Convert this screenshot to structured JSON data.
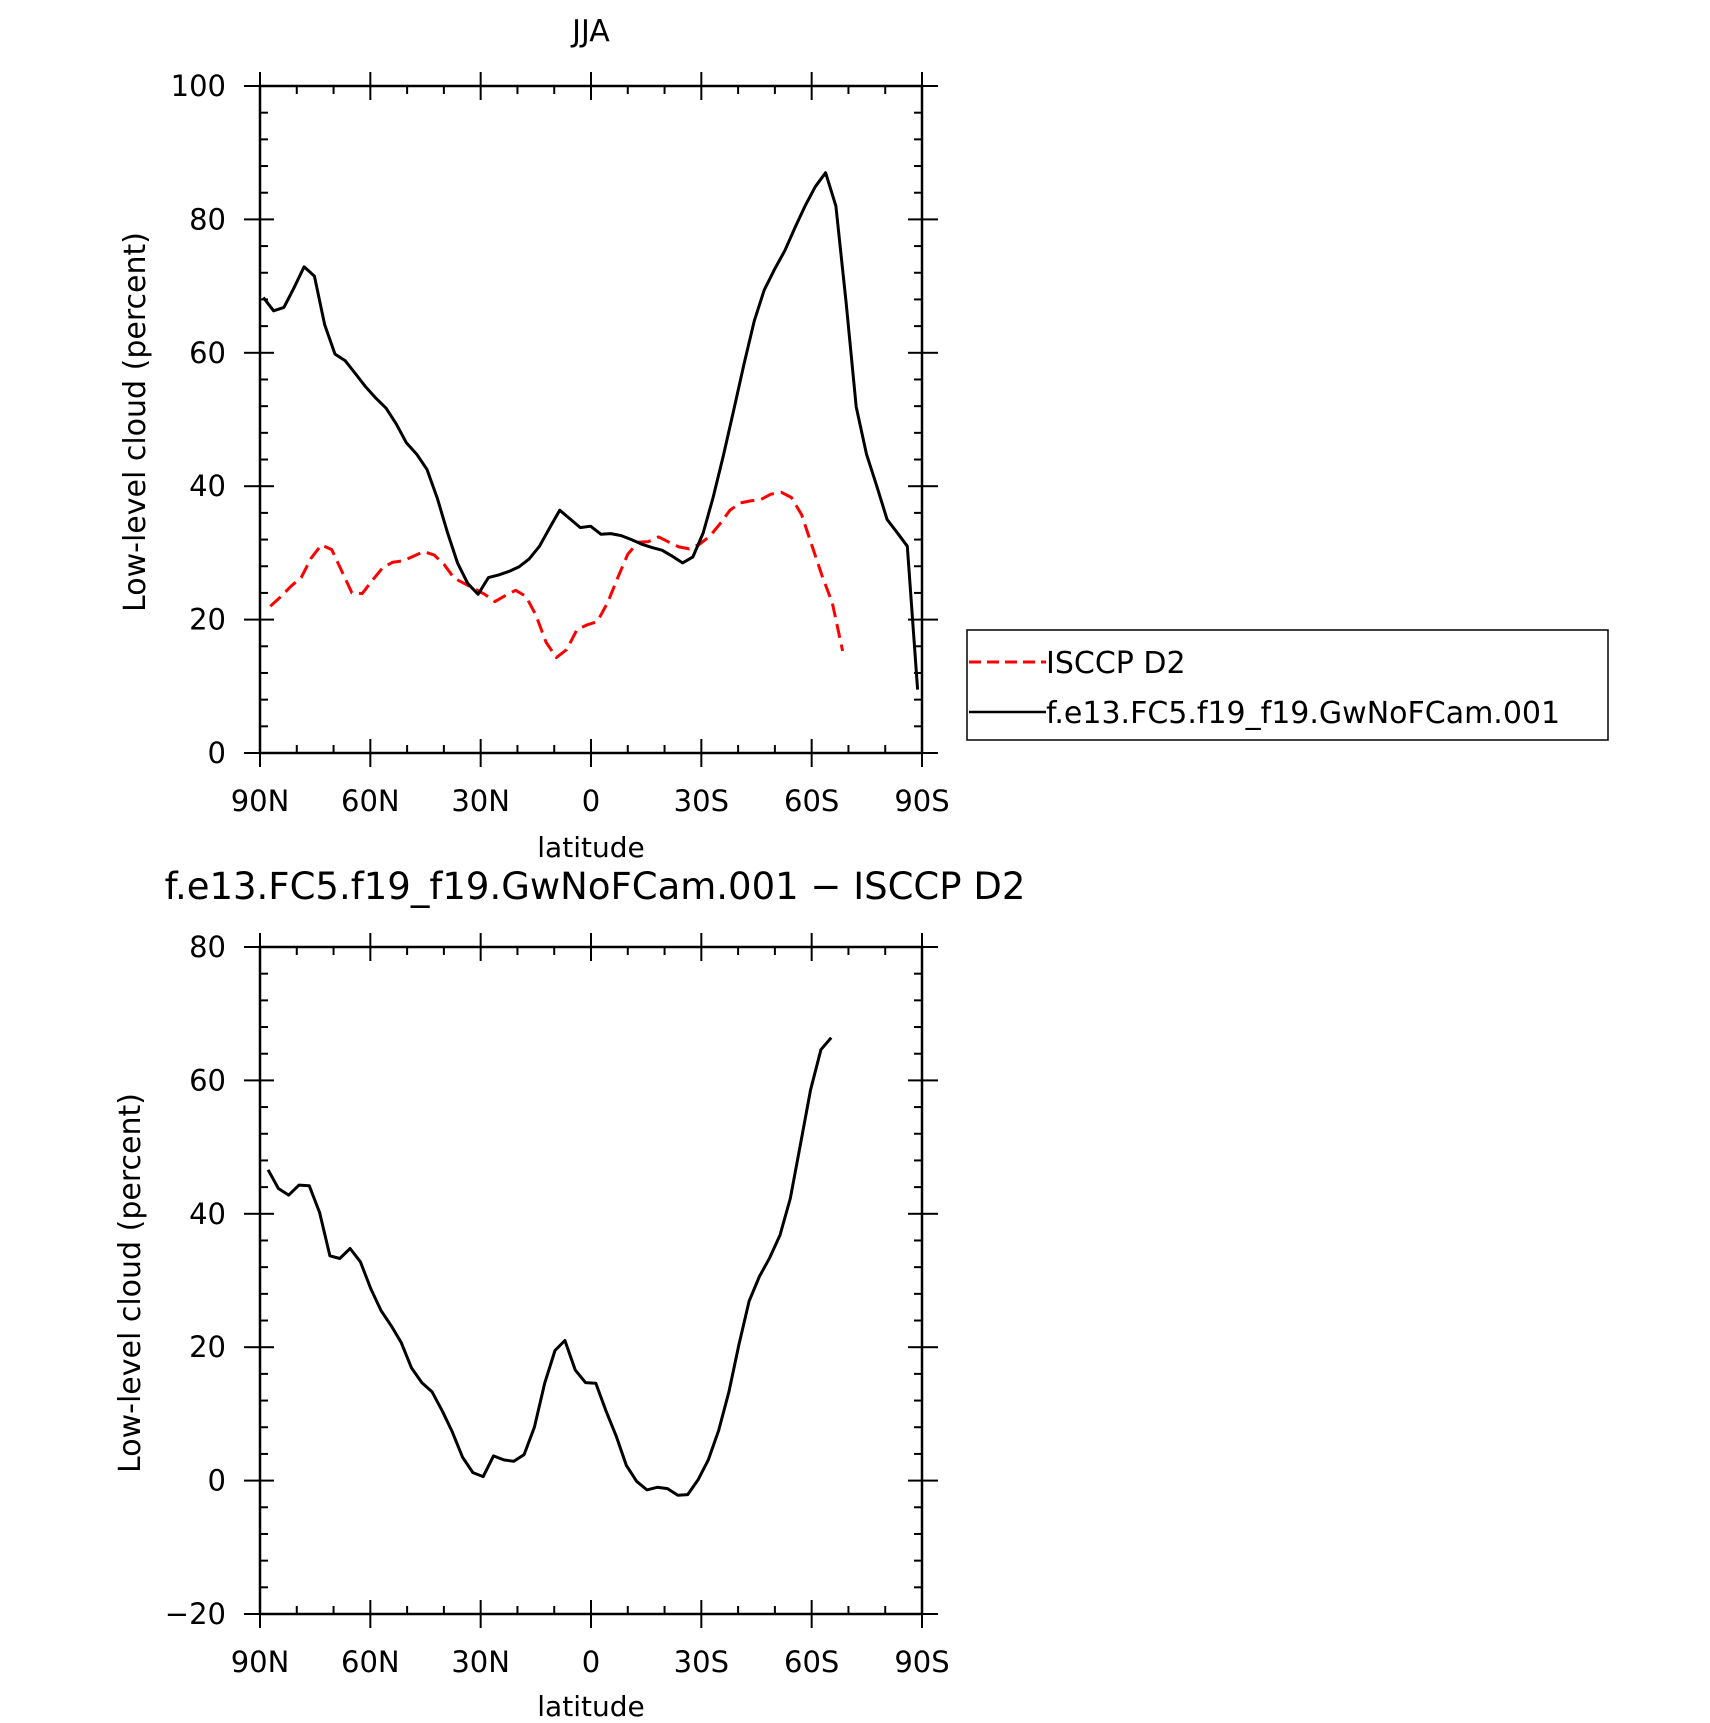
{
  "chart_data": [
    {
      "type": "line",
      "title": "JJA",
      "xlabel": "latitude",
      "ylabel": "Low-level cloud (percent)",
      "xlim": [
        90,
        -90
      ],
      "ylim": [
        0,
        100
      ],
      "x_ticks": [
        {
          "value": 90,
          "label": "90N"
        },
        {
          "value": 60,
          "label": "60N"
        },
        {
          "value": 30,
          "label": "30N"
        },
        {
          "value": 0,
          "label": "0"
        },
        {
          "value": -30,
          "label": "30S"
        },
        {
          "value": -60,
          "label": "60S"
        },
        {
          "value": -90,
          "label": "90S"
        }
      ],
      "y_ticks": [
        {
          "value": 0,
          "label": "0"
        },
        {
          "value": 20,
          "label": "20"
        },
        {
          "value": 40,
          "label": "40"
        },
        {
          "value": 60,
          "label": "60"
        },
        {
          "value": 80,
          "label": "80"
        },
        {
          "value": 100,
          "label": "100"
        }
      ],
      "legend_position": "right",
      "series": [
        {
          "name": "ISCCP D2",
          "color": "#ff0000",
          "dash": "dashed",
          "points": [
            [
              87.2,
              22.0
            ],
            [
              84.4,
              23.4
            ],
            [
              81.6,
              25.0
            ],
            [
              78.8,
              26.3
            ],
            [
              76.1,
              29.2
            ],
            [
              73.3,
              31.2
            ],
            [
              70.5,
              30.5
            ],
            [
              67.7,
              27.2
            ],
            [
              65.0,
              24.0
            ],
            [
              62.2,
              23.9
            ],
            [
              59.4,
              25.9
            ],
            [
              56.6,
              27.8
            ],
            [
              53.9,
              28.6
            ],
            [
              51.1,
              28.8
            ],
            [
              48.3,
              29.5
            ],
            [
              45.5,
              30.2
            ],
            [
              42.7,
              29.7
            ],
            [
              40.0,
              28.3
            ],
            [
              37.2,
              26.2
            ],
            [
              34.4,
              25.4
            ],
            [
              31.6,
              24.6
            ],
            [
              28.9,
              23.8
            ],
            [
              26.1,
              22.7
            ],
            [
              23.3,
              23.6
            ],
            [
              20.5,
              24.4
            ],
            [
              17.7,
              23.5
            ],
            [
              15.0,
              20.7
            ],
            [
              12.2,
              16.6
            ],
            [
              9.4,
              14.3
            ],
            [
              6.6,
              15.5
            ],
            [
              3.8,
              18.5
            ],
            [
              1.1,
              19.2
            ],
            [
              -1.7,
              19.7
            ],
            [
              -4.5,
              22.5
            ],
            [
              -7.3,
              26.3
            ],
            [
              -10.0,
              29.8
            ],
            [
              -12.8,
              31.6
            ],
            [
              -15.6,
              31.7
            ],
            [
              -18.4,
              32.4
            ],
            [
              -21.2,
              31.6
            ],
            [
              -23.9,
              30.9
            ],
            [
              -26.7,
              30.6
            ],
            [
              -29.5,
              31.3
            ],
            [
              -32.3,
              32.5
            ],
            [
              -35.0,
              34.3
            ],
            [
              -37.8,
              36.4
            ],
            [
              -40.6,
              37.5
            ],
            [
              -43.4,
              37.8
            ],
            [
              -46.2,
              38.0
            ],
            [
              -48.9,
              38.8
            ],
            [
              -51.7,
              39.1
            ],
            [
              -54.5,
              38.3
            ],
            [
              -57.3,
              35.7
            ],
            [
              -60.0,
              31.2
            ],
            [
              -62.8,
              26.6
            ],
            [
              -65.6,
              22.5
            ],
            [
              -68.4,
              15.3
            ]
          ]
        },
        {
          "name": "f.e13.FC5.f19_f19.GwNoFCam.001",
          "color": "#000000",
          "dash": "solid",
          "points": [
            [
              89.1,
              68.3
            ],
            [
              86.3,
              66.3
            ],
            [
              83.5,
              66.8
            ],
            [
              80.7,
              69.8
            ],
            [
              78.0,
              72.9
            ],
            [
              75.2,
              71.5
            ],
            [
              72.4,
              64.2
            ],
            [
              69.6,
              59.8
            ],
            [
              66.8,
              58.8
            ],
            [
              64.1,
              56.9
            ],
            [
              61.3,
              54.9
            ],
            [
              58.5,
              53.2
            ],
            [
              55.7,
              51.7
            ],
            [
              52.9,
              49.3
            ],
            [
              50.2,
              46.5
            ],
            [
              47.4,
              44.8
            ],
            [
              44.6,
              42.5
            ],
            [
              41.8,
              38.2
            ],
            [
              39.0,
              33.0
            ],
            [
              36.3,
              28.5
            ],
            [
              33.5,
              25.4
            ],
            [
              30.7,
              23.8
            ],
            [
              27.9,
              26.3
            ],
            [
              25.1,
              26.7
            ],
            [
              22.4,
              27.2
            ],
            [
              19.6,
              27.9
            ],
            [
              16.8,
              29.1
            ],
            [
              14.0,
              31.0
            ],
            [
              11.2,
              33.8
            ],
            [
              8.5,
              36.4
            ],
            [
              5.7,
              35.1
            ],
            [
              2.9,
              33.8
            ],
            [
              0.1,
              34.0
            ],
            [
              -2.7,
              32.8
            ],
            [
              -5.4,
              32.9
            ],
            [
              -8.2,
              32.6
            ],
            [
              -11.0,
              32.0
            ],
            [
              -13.8,
              31.3
            ],
            [
              -16.6,
              30.8
            ],
            [
              -19.3,
              30.4
            ],
            [
              -22.1,
              29.5
            ],
            [
              -24.9,
              28.5
            ],
            [
              -27.7,
              29.4
            ],
            [
              -30.5,
              33.0
            ],
            [
              -33.2,
              38.3
            ],
            [
              -36.0,
              44.6
            ],
            [
              -38.8,
              51.4
            ],
            [
              -41.6,
              58.3
            ],
            [
              -44.4,
              64.8
            ],
            [
              -47.1,
              69.4
            ],
            [
              -49.9,
              72.5
            ],
            [
              -52.7,
              75.3
            ],
            [
              -55.5,
              78.8
            ],
            [
              -58.2,
              82.0
            ],
            [
              -61.0,
              84.9
            ],
            [
              -63.8,
              87.0
            ],
            [
              -66.6,
              82.0
            ],
            [
              -69.4,
              67.4
            ],
            [
              -72.1,
              51.9
            ],
            [
              -74.9,
              44.8
            ],
            [
              -77.7,
              40.0
            ],
            [
              -80.5,
              35.0
            ],
            [
              -83.3,
              33.0
            ],
            [
              -86.0,
              31.0
            ],
            [
              -88.8,
              9.5
            ]
          ]
        }
      ]
    },
    {
      "type": "line",
      "title": "f.e13.FC5.f19_f19.GwNoFCam.001 − ISCCP D2",
      "xlabel": "latitude",
      "ylabel": "Low-level cloud (percent)",
      "xlim": [
        90,
        -90
      ],
      "ylim": [
        -20,
        80
      ],
      "x_ticks": [
        {
          "value": 90,
          "label": "90N"
        },
        {
          "value": 60,
          "label": "60N"
        },
        {
          "value": 30,
          "label": "30N"
        },
        {
          "value": 0,
          "label": "0"
        },
        {
          "value": -30,
          "label": "30S"
        },
        {
          "value": -60,
          "label": "60S"
        },
        {
          "value": -90,
          "label": "90S"
        }
      ],
      "y_ticks": [
        {
          "value": -20,
          "label": "−20"
        },
        {
          "value": 0,
          "label": "0"
        },
        {
          "value": 20,
          "label": "20"
        },
        {
          "value": 40,
          "label": "40"
        },
        {
          "value": 60,
          "label": "60"
        },
        {
          "value": 80,
          "label": "80"
        }
      ],
      "series": [
        {
          "color": "#000000",
          "dash": "solid",
          "points": [
            [
              87.8,
              46.6
            ],
            [
              85.0,
              43.8
            ],
            [
              82.2,
              42.8
            ],
            [
              79.4,
              44.3
            ],
            [
              76.6,
              44.2
            ],
            [
              73.8,
              40.2
            ],
            [
              71.0,
              33.7
            ],
            [
              68.3,
              33.3
            ],
            [
              65.5,
              34.8
            ],
            [
              62.7,
              32.8
            ],
            [
              59.9,
              28.8
            ],
            [
              57.1,
              25.5
            ],
            [
              54.3,
              23.2
            ],
            [
              51.6,
              20.7
            ],
            [
              48.8,
              16.9
            ],
            [
              46.0,
              14.7
            ],
            [
              43.2,
              13.3
            ],
            [
              40.4,
              10.4
            ],
            [
              37.7,
              7.3
            ],
            [
              34.9,
              3.5
            ],
            [
              32.1,
              1.2
            ],
            [
              29.3,
              0.6
            ],
            [
              26.5,
              3.7
            ],
            [
              23.7,
              3.1
            ],
            [
              21.0,
              2.9
            ],
            [
              18.2,
              3.9
            ],
            [
              15.4,
              8.0
            ],
            [
              12.6,
              14.6
            ],
            [
              9.8,
              19.5
            ],
            [
              7.1,
              21.0
            ],
            [
              4.3,
              16.6
            ],
            [
              1.5,
              14.7
            ],
            [
              -1.3,
              14.6
            ],
            [
              -4.1,
              10.4
            ],
            [
              -6.9,
              6.6
            ],
            [
              -9.6,
              2.3
            ],
            [
              -12.4,
              -0.1
            ],
            [
              -15.2,
              -1.4
            ],
            [
              -18.0,
              -1.0
            ],
            [
              -20.8,
              -1.2
            ],
            [
              -23.6,
              -2.2
            ],
            [
              -26.3,
              -2.1
            ],
            [
              -29.1,
              0.1
            ],
            [
              -31.9,
              3.1
            ],
            [
              -34.7,
              7.5
            ],
            [
              -37.5,
              13.3
            ],
            [
              -40.2,
              20.3
            ],
            [
              -43.0,
              26.9
            ],
            [
              -45.8,
              30.6
            ],
            [
              -48.6,
              33.4
            ],
            [
              -51.4,
              36.8
            ],
            [
              -54.2,
              42.3
            ],
            [
              -56.9,
              50.3
            ],
            [
              -59.7,
              58.6
            ],
            [
              -62.5,
              64.6
            ],
            [
              -65.3,
              66.4
            ]
          ]
        }
      ]
    }
  ]
}
